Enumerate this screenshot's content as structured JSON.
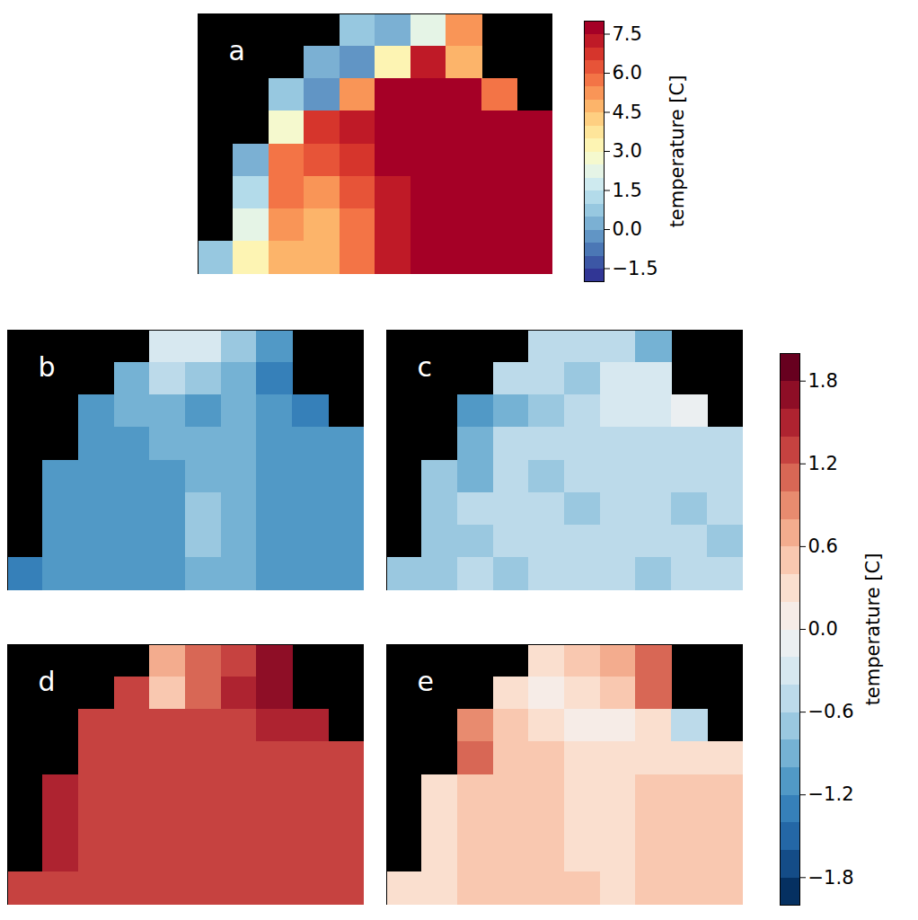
{
  "chart_data": [
    {
      "type": "heatmap",
      "panels": [
        {
          "title": "a",
          "cells": [
            [
              null,
              null,
              null,
              null,
              0.5,
              0.0,
              2.0,
              5.0,
              null,
              null
            ],
            [
              null,
              null,
              null,
              0.0,
              -0.5,
              3.0,
              7.0,
              4.5,
              null,
              null
            ],
            [
              null,
              null,
              0.5,
              -0.5,
              5.0,
              7.5,
              8.0,
              7.5,
              5.5,
              null
            ],
            [
              null,
              null,
              2.5,
              6.5,
              7.0,
              8.0,
              8.0,
              8.0,
              8.0,
              8.0
            ],
            [
              null,
              0.0,
              5.5,
              6.0,
              6.5,
              7.5,
              8.0,
              8.0,
              8.0,
              8.0
            ],
            [
              null,
              1.0,
              5.5,
              5.0,
              6.0,
              7.0,
              8.0,
              8.0,
              8.0,
              8.0
            ],
            [
              null,
              2.0,
              5.0,
              4.5,
              5.5,
              7.0,
              8.0,
              8.0,
              8.0,
              8.0
            ],
            [
              0.5,
              3.0,
              4.5,
              4.5,
              5.5,
              7.0,
              7.5,
              8.0,
              8.0,
              8.0
            ]
          ]
        }
      ],
      "colorbar": {
        "label": "temperature [C]",
        "range": [
          -2.0,
          8.0
        ],
        "ticks": [
          7.5,
          {
            "value": 6.0,
            "label": "6.0"
          },
          4.5,
          {
            "value": 3.0,
            "label": "3.0"
          },
          1.5,
          {
            "value": 0.0,
            "label": "0.0"
          },
          {
            "value": -1.5,
            "label": "−1.5"
          }
        ],
        "levels": [
          -1.5,
          -1.0,
          -0.5,
          0.0,
          0.5,
          1.0,
          1.5,
          2.0,
          2.5,
          3.0,
          3.5,
          4.0,
          4.5,
          5.0,
          5.5,
          6.0,
          6.5,
          7.0,
          7.5
        ]
      }
    },
    {
      "type": "heatmap",
      "panels": [
        {
          "title": "b",
          "cells": [
            [
              null,
              null,
              null,
              null,
              -0.4,
              -0.4,
              -0.8,
              -1.2,
              null,
              null
            ],
            [
              null,
              null,
              null,
              -1.0,
              -0.6,
              -0.8,
              -1.0,
              -1.4,
              null,
              null
            ],
            [
              null,
              null,
              -1.2,
              -1.0,
              -1.0,
              -1.2,
              -1.0,
              -1.2,
              -1.4,
              null
            ],
            [
              null,
              null,
              -1.2,
              -1.2,
              -1.0,
              -1.0,
              -1.0,
              -1.2,
              -1.2,
              -1.2
            ],
            [
              null,
              -1.2,
              -1.2,
              -1.2,
              -1.2,
              -1.0,
              -1.0,
              -1.2,
              -1.2,
              -1.2
            ],
            [
              null,
              -1.2,
              -1.2,
              -1.2,
              -1.2,
              -0.8,
              -1.0,
              -1.2,
              -1.2,
              -1.2
            ],
            [
              null,
              -1.2,
              -1.2,
              -1.2,
              -1.2,
              -0.8,
              -1.0,
              -1.2,
              -1.2,
              -1.2
            ],
            [
              -1.4,
              -1.2,
              -1.2,
              -1.2,
              -1.2,
              -1.0,
              -1.0,
              -1.2,
              -1.2,
              -1.2
            ]
          ]
        },
        {
          "title": "c",
          "cells": [
            [
              null,
              null,
              null,
              null,
              -0.6,
              -0.6,
              -0.6,
              -1.0,
              null,
              null
            ],
            [
              null,
              null,
              null,
              -0.6,
              -0.6,
              -0.8,
              -0.4,
              -0.4,
              null,
              null
            ],
            [
              null,
              null,
              -1.2,
              -1.0,
              -0.8,
              -0.6,
              -0.4,
              -0.4,
              -0.2,
              null
            ],
            [
              null,
              null,
              -1.0,
              -0.6,
              -0.6,
              -0.6,
              -0.6,
              -0.6,
              -0.6,
              -0.6
            ],
            [
              null,
              -0.8,
              -1.0,
              -0.6,
              -0.8,
              -0.6,
              -0.6,
              -0.6,
              -0.6,
              -0.6
            ],
            [
              null,
              -0.8,
              -0.6,
              -0.6,
              -0.6,
              -0.8,
              -0.6,
              -0.6,
              -0.8,
              -0.6
            ],
            [
              null,
              -0.8,
              -0.8,
              -0.6,
              -0.6,
              -0.6,
              -0.6,
              -0.6,
              -0.6,
              -0.8
            ],
            [
              -0.8,
              -0.8,
              -0.6,
              -0.8,
              -0.6,
              -0.6,
              -0.6,
              -0.8,
              -0.6,
              -0.6
            ]
          ]
        },
        {
          "title": "d",
          "cells": [
            [
              null,
              null,
              null,
              null,
              0.6,
              1.0,
              1.2,
              1.6,
              null,
              null
            ],
            [
              null,
              null,
              null,
              1.2,
              0.4,
              1.0,
              1.4,
              1.6,
              null,
              null
            ],
            [
              null,
              null,
              1.2,
              1.2,
              1.2,
              1.2,
              1.2,
              1.4,
              1.4,
              null
            ],
            [
              null,
              null,
              1.2,
              1.2,
              1.2,
              1.2,
              1.2,
              1.2,
              1.2,
              1.2
            ],
            [
              null,
              1.4,
              1.2,
              1.2,
              1.2,
              1.2,
              1.2,
              1.2,
              1.2,
              1.2
            ],
            [
              null,
              1.4,
              1.2,
              1.2,
              1.2,
              1.2,
              1.2,
              1.2,
              1.2,
              1.2
            ],
            [
              null,
              1.4,
              1.2,
              1.2,
              1.2,
              1.2,
              1.2,
              1.2,
              1.2,
              1.2
            ],
            [
              1.2,
              1.2,
              1.2,
              1.2,
              1.2,
              1.2,
              1.2,
              1.2,
              1.2,
              1.2
            ]
          ]
        },
        {
          "title": "e",
          "cells": [
            [
              null,
              null,
              null,
              null,
              0.2,
              0.4,
              0.6,
              1.0,
              null,
              null
            ],
            [
              null,
              null,
              null,
              0.2,
              0.0,
              0.2,
              0.4,
              1.0,
              null,
              null
            ],
            [
              null,
              null,
              0.8,
              0.4,
              0.2,
              0.0,
              0.0,
              0.2,
              -0.6,
              null
            ],
            [
              null,
              null,
              1.0,
              0.4,
              0.4,
              0.2,
              0.2,
              0.2,
              0.2,
              0.2
            ],
            [
              null,
              0.2,
              0.4,
              0.4,
              0.4,
              0.2,
              0.2,
              0.4,
              0.4,
              0.4
            ],
            [
              null,
              0.2,
              0.4,
              0.4,
              0.4,
              0.2,
              0.2,
              0.4,
              0.4,
              0.4
            ],
            [
              null,
              0.2,
              0.4,
              0.4,
              0.4,
              0.2,
              0.2,
              0.4,
              0.4,
              0.4
            ],
            [
              0.2,
              0.2,
              0.4,
              0.4,
              0.4,
              0.4,
              0.2,
              0.4,
              0.4,
              0.4
            ]
          ]
        }
      ],
      "colorbar": {
        "label": "temperature [C]",
        "range": [
          -2.0,
          2.0
        ],
        "ticks": [
          1.8,
          1.2,
          0.6,
          {
            "value": 0.0,
            "label": "0.0"
          },
          {
            "value": -0.6,
            "label": "−0.6"
          },
          {
            "value": -1.2,
            "label": "−1.2"
          },
          {
            "value": -1.8,
            "label": "−1.8"
          }
        ],
        "levels": [
          -1.8,
          -1.6,
          -1.4,
          -1.2,
          -1.0,
          -0.8,
          -0.6,
          -0.4,
          -0.2,
          0.0,
          0.2,
          0.4,
          0.6,
          0.8,
          1.0,
          1.2,
          1.4,
          1.6,
          1.8
        ]
      }
    }
  ]
}
